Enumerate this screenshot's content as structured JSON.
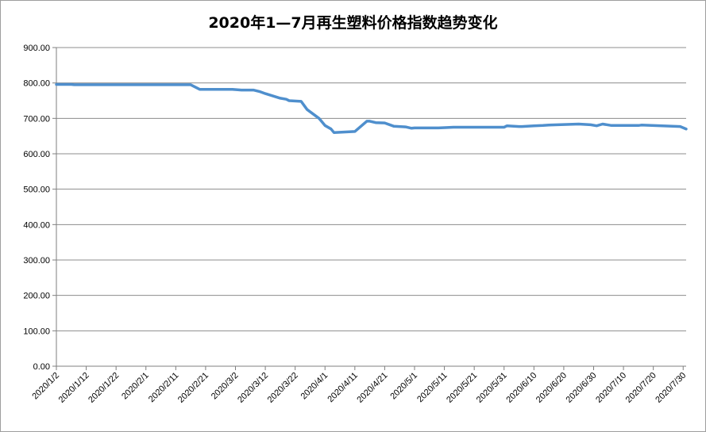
{
  "chart_data": {
    "type": "line",
    "title": "2020年1—7月再生塑料价格指数趋势变化",
    "xlabel": "",
    "ylabel": "",
    "ylim": [
      0,
      900
    ],
    "yticks": [
      "0.00",
      "100.00",
      "200.00",
      "300.00",
      "400.00",
      "500.00",
      "600.00",
      "700.00",
      "800.00",
      "900.00"
    ],
    "xtick_labels": [
      "2020/1/2",
      "2020/1/12",
      "2020/1/22",
      "2020/2/1",
      "2020/2/11",
      "2020/2/21",
      "2020/3/2",
      "2020/3/12",
      "2020/3/22",
      "2020/4/1",
      "2020/4/11",
      "2020/4/21",
      "2020/5/1",
      "2020/5/11",
      "2020/5/21",
      "2020/5/31",
      "2020/6/10",
      "2020/6/20",
      "2020/6/30",
      "2020/7/10",
      "2020/7/20",
      "2020/7/30"
    ],
    "x_range": [
      "2020/1/2",
      "2020/7/31"
    ],
    "grid": "horizontal",
    "legend": "none",
    "line_color": "#4f8fcd",
    "series": [
      {
        "x": [
          "2020/1/2",
          "2020/1/7",
          "2020/1/8",
          "2020/1/31",
          "2020/2/16",
          "2020/2/19",
          "2020/2/21",
          "2020/3/1",
          "2020/3/4",
          "2020/3/8",
          "2020/3/10",
          "2020/3/12",
          "2020/3/17",
          "2020/3/19",
          "2020/3/20",
          "2020/3/24",
          "2020/3/26",
          "2020/3/30",
          "2020/4/1",
          "2020/4/3",
          "2020/4/4",
          "2020/4/11",
          "2020/4/15",
          "2020/4/16",
          "2020/4/18",
          "2020/4/21",
          "2020/4/24",
          "2020/4/28",
          "2020/4/30",
          "2020/5/1",
          "2020/5/9",
          "2020/5/12",
          "2020/5/14",
          "2020/5/31",
          "2020/6/1",
          "2020/6/5",
          "2020/6/6",
          "2020/6/10",
          "2020/6/13",
          "2020/6/15",
          "2020/6/25",
          "2020/6/29",
          "2020/7/1",
          "2020/7/3",
          "2020/7/6",
          "2020/7/15",
          "2020/7/16",
          "2020/7/23",
          "2020/7/29",
          "2020/7/31"
        ],
        "y": [
          796,
          796,
          795,
          795,
          795,
          782,
          782,
          782,
          780,
          780,
          776,
          770,
          757,
          754,
          750,
          748,
          725,
          700,
          680,
          670,
          660,
          663,
          692,
          692,
          688,
          687,
          678,
          676,
          672,
          673,
          673,
          674,
          675,
          675,
          679,
          677,
          677,
          679,
          680,
          681,
          684,
          682,
          679,
          684,
          680,
          680,
          681,
          679,
          677,
          670
        ]
      }
    ]
  }
}
